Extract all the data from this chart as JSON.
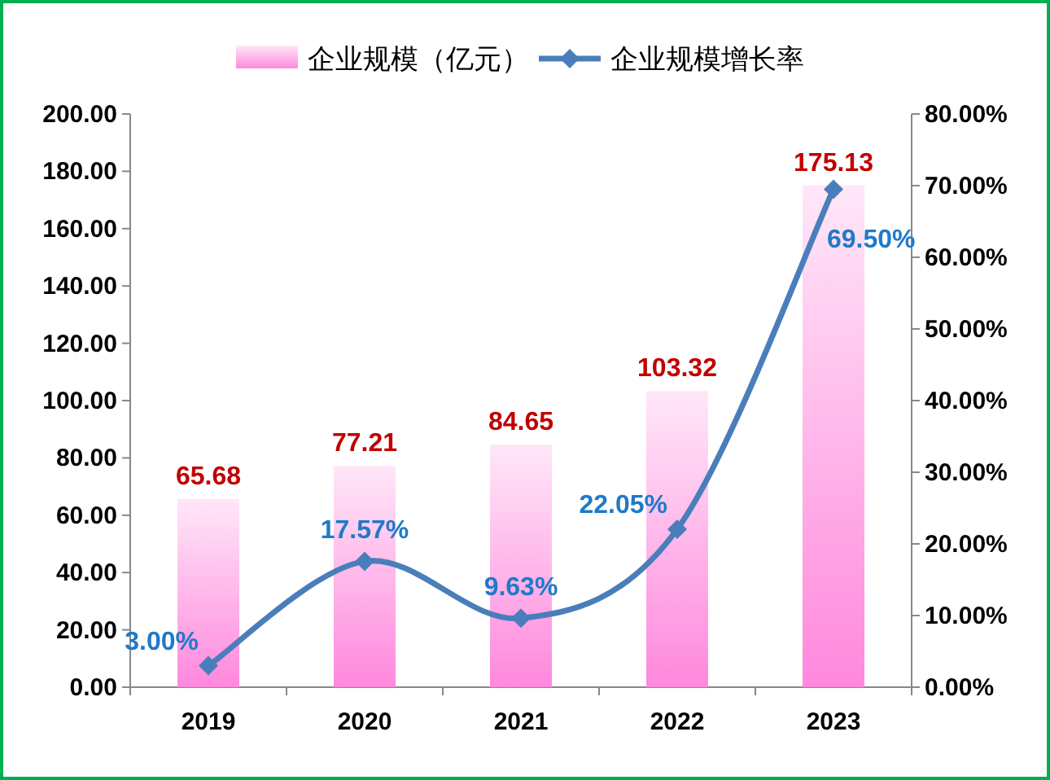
{
  "chart_data": {
    "type": "bar",
    "categories": [
      "2019",
      "2020",
      "2021",
      "2022",
      "2023"
    ],
    "series": [
      {
        "name": "企业规模（亿元）",
        "color": "#ff88dd",
        "values": [
          65.68,
          77.21,
          84.65,
          103.32,
          175.13
        ],
        "value_labels": [
          "65.68",
          "77.21",
          "84.65",
          "103.32",
          "175.13"
        ]
      },
      {
        "name": "企业规模增长率",
        "type": "line",
        "axis": "y2",
        "color": "#4a7ebb",
        "values": [
          3.0,
          17.57,
          9.63,
          22.05,
          69.5
        ],
        "value_labels": [
          "3.00%",
          "17.57%",
          "9.63%",
          "22.05%",
          "69.50%"
        ]
      }
    ],
    "ylim": [
      0,
      200
    ],
    "yticks": [
      {
        "value": 0,
        "label": "0.00"
      },
      {
        "value": 20,
        "label": "20.00"
      },
      {
        "value": 40,
        "label": "40.00"
      },
      {
        "value": 60,
        "label": "60.00"
      },
      {
        "value": 80,
        "label": "80.00"
      },
      {
        "value": 100,
        "label": "100.00"
      },
      {
        "value": 120,
        "label": "120.00"
      },
      {
        "value": 140,
        "label": "140.00"
      },
      {
        "value": 160,
        "label": "160.00"
      },
      {
        "value": 180,
        "label": "180.00"
      },
      {
        "value": 200,
        "label": "200.00"
      }
    ],
    "y2lim": [
      0,
      80
    ],
    "y2ticks": [
      {
        "value": 0,
        "label": "0.00%"
      },
      {
        "value": 10,
        "label": "10.00%"
      },
      {
        "value": 20,
        "label": "20.00%"
      },
      {
        "value": 30,
        "label": "30.00%"
      },
      {
        "value": 40,
        "label": "40.00%"
      },
      {
        "value": 50,
        "label": "50.00%"
      },
      {
        "value": 60,
        "label": "60.00%"
      },
      {
        "value": 70,
        "label": "70.00%"
      },
      {
        "value": 80,
        "label": "80.00%"
      }
    ],
    "legend": "top",
    "marker": "diamond"
  }
}
